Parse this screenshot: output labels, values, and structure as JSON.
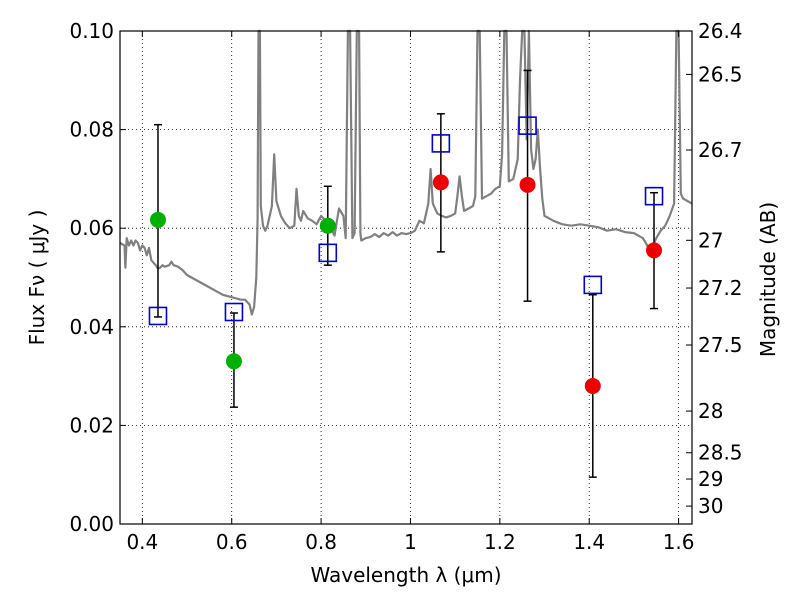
{
  "chart_data": {
    "type": "scatter",
    "xlabel": "Wavelength  λ (μm)",
    "ylabel": "Flux  Fν  ( μJy )",
    "ylabel_right": "Magnitude (AB)",
    "xlim": [
      0.35,
      1.63
    ],
    "ylim": [
      0.0,
      0.1
    ],
    "grid": true,
    "x_ticks": [
      {
        "value": 0.4,
        "label": "0.4"
      },
      {
        "value": 0.6,
        "label": "0.6"
      },
      {
        "value": 0.8,
        "label": "0.8"
      },
      {
        "value": 1.0,
        "label": "1"
      },
      {
        "value": 1.2,
        "label": "1.2"
      },
      {
        "value": 1.4,
        "label": "1.4"
      },
      {
        "value": 1.6,
        "label": "1.6"
      }
    ],
    "y_ticks": [
      {
        "value": 0.0,
        "label": "0.00"
      },
      {
        "value": 0.02,
        "label": "0.02"
      },
      {
        "value": 0.04,
        "label": "0.04"
      },
      {
        "value": 0.06,
        "label": "0.06"
      },
      {
        "value": 0.08,
        "label": "0.08"
      },
      {
        "value": 0.1,
        "label": "0.10"
      }
    ],
    "right_ticks": [
      {
        "mag": 26.4,
        "label": "26.4"
      },
      {
        "mag": 26.5,
        "label": "26.5"
      },
      {
        "mag": 26.7,
        "label": "26.7"
      },
      {
        "mag": 27.0,
        "label": "27"
      },
      {
        "mag": 27.2,
        "label": "27.2"
      },
      {
        "mag": 27.5,
        "label": "27.5"
      },
      {
        "mag": 28.0,
        "label": "28"
      },
      {
        "mag": 28.5,
        "label": "28.5"
      },
      {
        "mag": 29.0,
        "label": "29"
      },
      {
        "mag": 30.0,
        "label": "30"
      }
    ],
    "series": [
      {
        "name": "model spectrum",
        "kind": "line",
        "color": "#808080",
        "points": [
          [
            0.35,
            0.057
          ],
          [
            0.36,
            0.0565
          ],
          [
            0.362,
            0.052
          ],
          [
            0.365,
            0.058
          ],
          [
            0.37,
            0.0565
          ],
          [
            0.375,
            0.0575
          ],
          [
            0.38,
            0.0565
          ],
          [
            0.385,
            0.0575
          ],
          [
            0.39,
            0.057
          ],
          [
            0.395,
            0.0555
          ],
          [
            0.4,
            0.0565
          ],
          [
            0.405,
            0.056
          ],
          [
            0.41,
            0.0545
          ],
          [
            0.415,
            0.056
          ],
          [
            0.42,
            0.0535
          ],
          [
            0.425,
            0.053
          ],
          [
            0.43,
            0.0525
          ],
          [
            0.435,
            0.0518
          ],
          [
            0.44,
            0.052
          ],
          [
            0.445,
            0.0525
          ],
          [
            0.45,
            0.0522
          ],
          [
            0.46,
            0.0525
          ],
          [
            0.465,
            0.0532
          ],
          [
            0.47,
            0.0525
          ],
          [
            0.48,
            0.0522
          ],
          [
            0.49,
            0.0515
          ],
          [
            0.5,
            0.0505
          ],
          [
            0.52,
            0.0495
          ],
          [
            0.54,
            0.0485
          ],
          [
            0.56,
            0.0475
          ],
          [
            0.58,
            0.0465
          ],
          [
            0.6,
            0.046
          ],
          [
            0.62,
            0.0455
          ],
          [
            0.63,
            0.0455
          ],
          [
            0.64,
            0.0445
          ],
          [
            0.645,
            0.0425
          ],
          [
            0.65,
            0.044
          ],
          [
            0.655,
            0.05
          ],
          [
            0.658,
            0.062
          ],
          [
            0.66,
            0.1
          ],
          [
            0.663,
            0.1
          ],
          [
            0.665,
            0.0645
          ],
          [
            0.67,
            0.0605
          ],
          [
            0.675,
            0.0595
          ],
          [
            0.68,
            0.0605
          ],
          [
            0.69,
            0.0645
          ],
          [
            0.695,
            0.075
          ],
          [
            0.7,
            0.0655
          ],
          [
            0.71,
            0.0625
          ],
          [
            0.72,
            0.061
          ],
          [
            0.73,
            0.06
          ],
          [
            0.74,
            0.0605
          ],
          [
            0.745,
            0.068
          ],
          [
            0.75,
            0.0625
          ],
          [
            0.755,
            0.0615
          ],
          [
            0.76,
            0.0635
          ],
          [
            0.77,
            0.062
          ],
          [
            0.78,
            0.0615
          ],
          [
            0.79,
            0.0608
          ],
          [
            0.8,
            0.0625
          ],
          [
            0.81,
            0.0615
          ],
          [
            0.82,
            0.0605
          ],
          [
            0.83,
            0.0585
          ],
          [
            0.84,
            0.064
          ],
          [
            0.85,
            0.0625
          ],
          [
            0.855,
            0.058
          ],
          [
            0.86,
            0.1
          ],
          [
            0.865,
            0.1
          ],
          [
            0.87,
            0.058
          ],
          [
            0.875,
            0.059
          ],
          [
            0.88,
            0.1
          ],
          [
            0.885,
            0.1
          ],
          [
            0.888,
            0.059
          ],
          [
            0.89,
            0.0575
          ],
          [
            0.9,
            0.058
          ],
          [
            0.91,
            0.0582
          ],
          [
            0.92,
            0.0588
          ],
          [
            0.93,
            0.0582
          ],
          [
            0.94,
            0.059
          ],
          [
            0.95,
            0.0585
          ],
          [
            0.96,
            0.0592
          ],
          [
            0.97,
            0.0585
          ],
          [
            0.98,
            0.059
          ],
          [
            0.99,
            0.0588
          ],
          [
            1.0,
            0.059
          ],
          [
            1.01,
            0.0595
          ],
          [
            1.02,
            0.0615
          ],
          [
            1.03,
            0.061
          ],
          [
            1.04,
            0.065
          ],
          [
            1.045,
            0.072
          ],
          [
            1.05,
            0.065
          ],
          [
            1.06,
            0.063
          ],
          [
            1.07,
            0.0625
          ],
          [
            1.08,
            0.0622
          ],
          [
            1.09,
            0.0625
          ],
          [
            1.1,
            0.063
          ],
          [
            1.105,
            0.0665
          ],
          [
            1.11,
            0.0705
          ],
          [
            1.115,
            0.0665
          ],
          [
            1.12,
            0.0635
          ],
          [
            1.13,
            0.064
          ],
          [
            1.14,
            0.0645
          ],
          [
            1.145,
            0.0665
          ],
          [
            1.15,
            0.1
          ],
          [
            1.155,
            0.1
          ],
          [
            1.16,
            0.066
          ],
          [
            1.17,
            0.0665
          ],
          [
            1.18,
            0.067
          ],
          [
            1.19,
            0.068
          ],
          [
            1.2,
            0.0685
          ],
          [
            1.205,
            0.075
          ],
          [
            1.21,
            0.1
          ],
          [
            1.215,
            0.1
          ],
          [
            1.22,
            0.0695
          ],
          [
            1.23,
            0.07
          ],
          [
            1.24,
            0.074
          ],
          [
            1.245,
            0.09
          ],
          [
            1.25,
            0.1
          ],
          [
            1.255,
            0.1
          ],
          [
            1.26,
            0.078
          ],
          [
            1.265,
            0.1
          ],
          [
            1.27,
            0.076
          ],
          [
            1.275,
            0.072
          ],
          [
            1.28,
            0.074
          ],
          [
            1.285,
            0.08
          ],
          [
            1.29,
            0.072
          ],
          [
            1.295,
            0.066
          ],
          [
            1.3,
            0.0625
          ],
          [
            1.32,
            0.0615
          ],
          [
            1.34,
            0.0608
          ],
          [
            1.36,
            0.0605
          ],
          [
            1.38,
            0.0608
          ],
          [
            1.4,
            0.0605
          ],
          [
            1.42,
            0.0602
          ],
          [
            1.44,
            0.0595
          ],
          [
            1.46,
            0.0598
          ],
          [
            1.48,
            0.0592
          ],
          [
            1.5,
            0.059
          ],
          [
            1.52,
            0.058
          ],
          [
            1.53,
            0.0565
          ],
          [
            1.535,
            0.0545
          ],
          [
            1.54,
            0.056
          ],
          [
            1.55,
            0.058
          ],
          [
            1.56,
            0.0595
          ],
          [
            1.57,
            0.0605
          ],
          [
            1.58,
            0.0625
          ],
          [
            1.59,
            0.065
          ],
          [
            1.595,
            0.1
          ],
          [
            1.6,
            0.1
          ],
          [
            1.605,
            0.067
          ],
          [
            1.61,
            0.066
          ],
          [
            1.62,
            0.0655
          ],
          [
            1.63,
            0.065
          ]
        ]
      },
      {
        "name": "model photometry",
        "kind": "open-square",
        "color": "#0000cc",
        "points": [
          [
            0.435,
            0.0422
          ],
          [
            0.605,
            0.043
          ],
          [
            0.815,
            0.055
          ],
          [
            1.068,
            0.0772
          ],
          [
            1.262,
            0.0808
          ],
          [
            1.408,
            0.0485
          ],
          [
            1.545,
            0.0665
          ]
        ]
      },
      {
        "name": "observed (green)",
        "kind": "filled-circle",
        "color": "#00b000",
        "points": [
          {
            "x": 0.435,
            "y": 0.0617,
            "err_low": 0.042,
            "err_high": 0.081
          },
          {
            "x": 0.605,
            "y": 0.033,
            "err_low": 0.0237,
            "err_high": 0.0428
          },
          {
            "x": 0.815,
            "y": 0.0605,
            "err_low": 0.0525,
            "err_high": 0.0685
          }
        ]
      },
      {
        "name": "observed (red)",
        "kind": "filled-circle",
        "color": "#ee0000",
        "points": [
          {
            "x": 1.068,
            "y": 0.0693,
            "err_low": 0.0552,
            "err_high": 0.0832
          },
          {
            "x": 1.262,
            "y": 0.0688,
            "err_low": 0.0452,
            "err_high": 0.092
          },
          {
            "x": 1.408,
            "y": 0.028,
            "err_low": 0.0095,
            "err_high": 0.0465
          },
          {
            "x": 1.545,
            "y": 0.0555,
            "err_low": 0.0437,
            "err_high": 0.0672
          }
        ]
      }
    ]
  }
}
